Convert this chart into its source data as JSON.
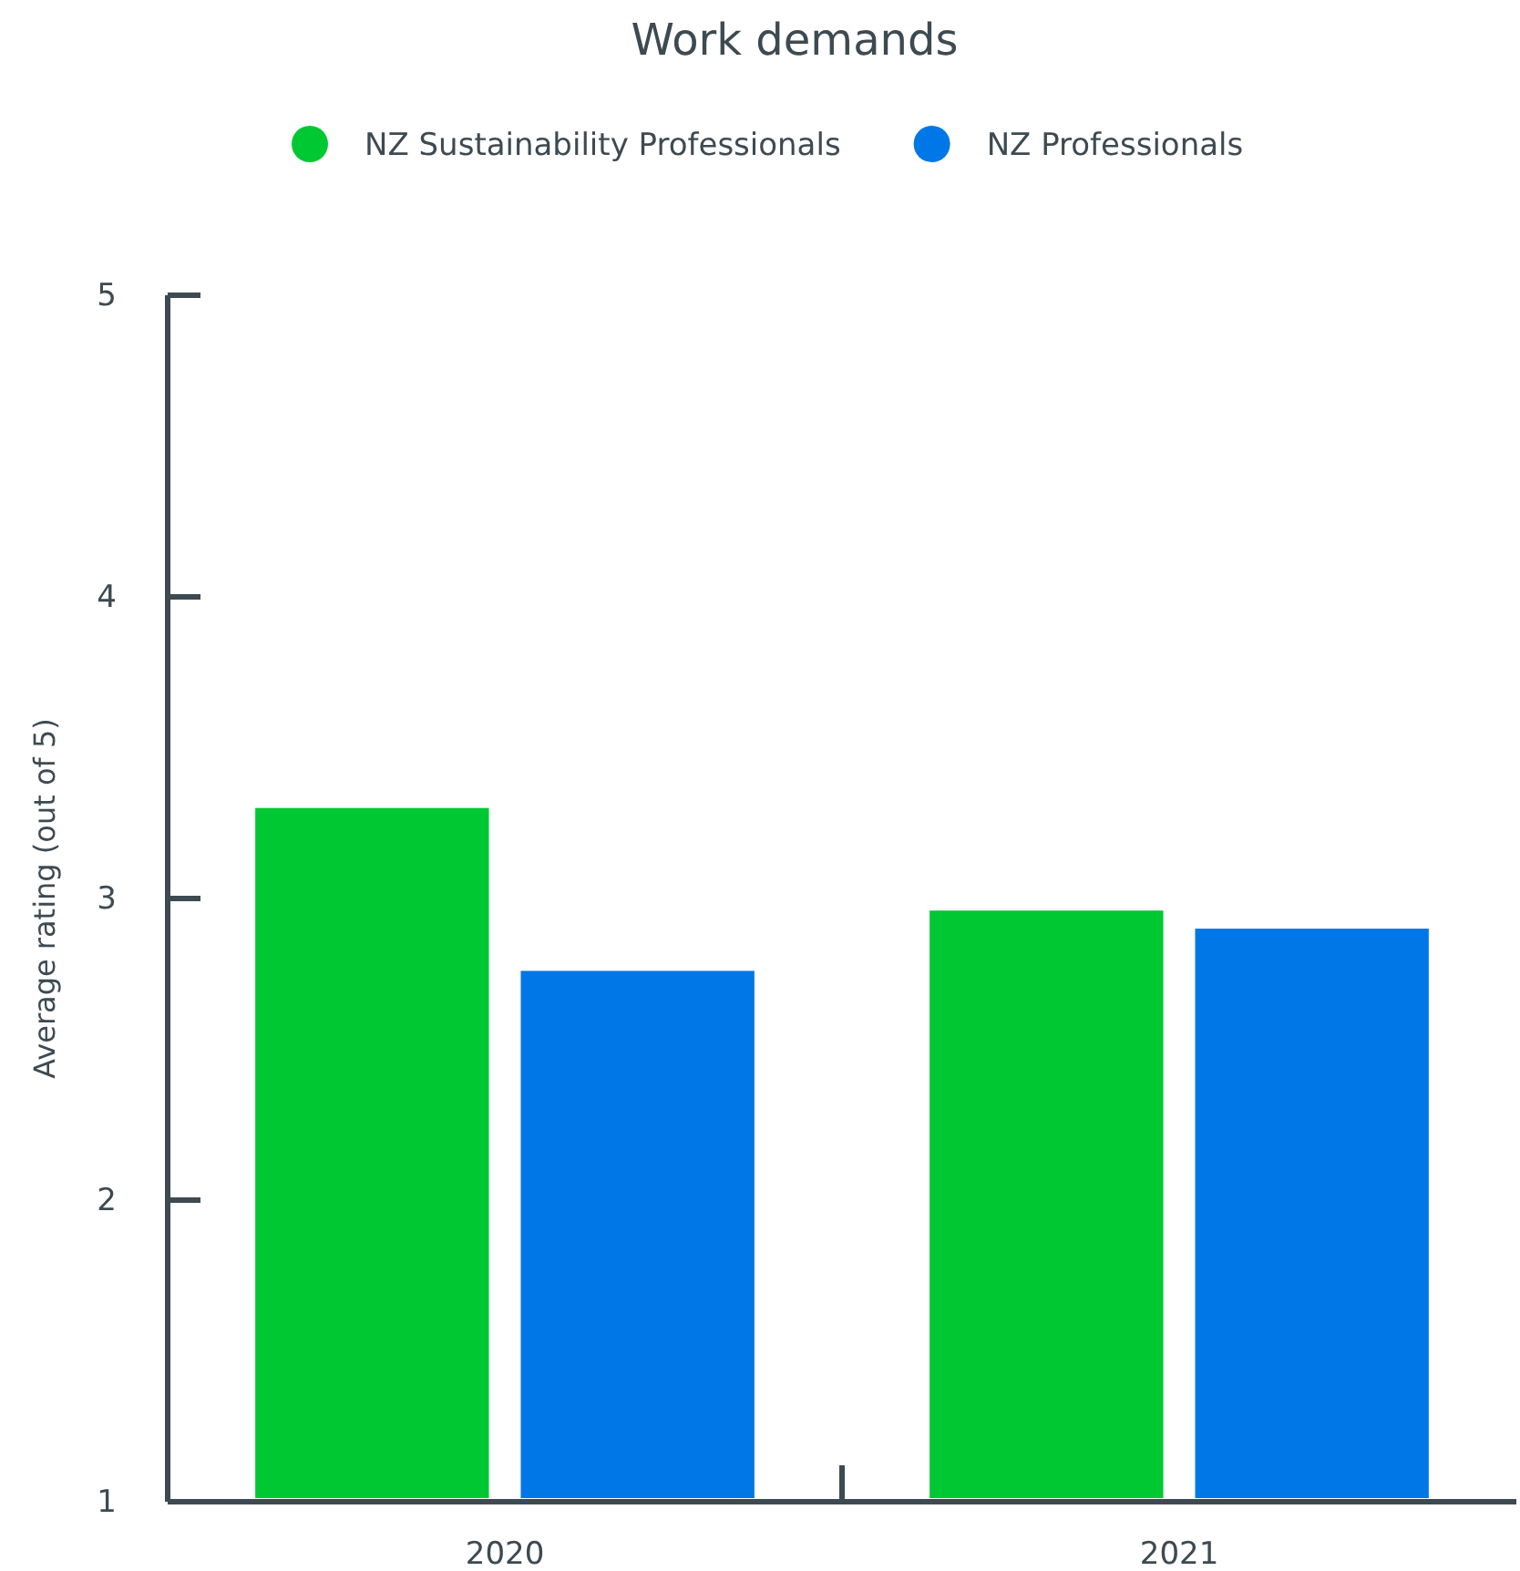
{
  "chart_data": {
    "type": "bar",
    "title": "Work demands",
    "ylabel": "Average rating (out of 5)",
    "categories": [
      "2020",
      "2021"
    ],
    "series": [
      {
        "name": "NZ Sustainability Professionals",
        "color": "#00c832",
        "values": [
          3.3,
          2.96
        ]
      },
      {
        "name": "NZ Professionals",
        "color": "#0077e6",
        "values": [
          2.76,
          2.9
        ]
      }
    ],
    "ylim": [
      1,
      5
    ],
    "yticks": [
      1,
      2,
      3,
      4,
      5
    ],
    "grid": false,
    "legend": "top"
  }
}
